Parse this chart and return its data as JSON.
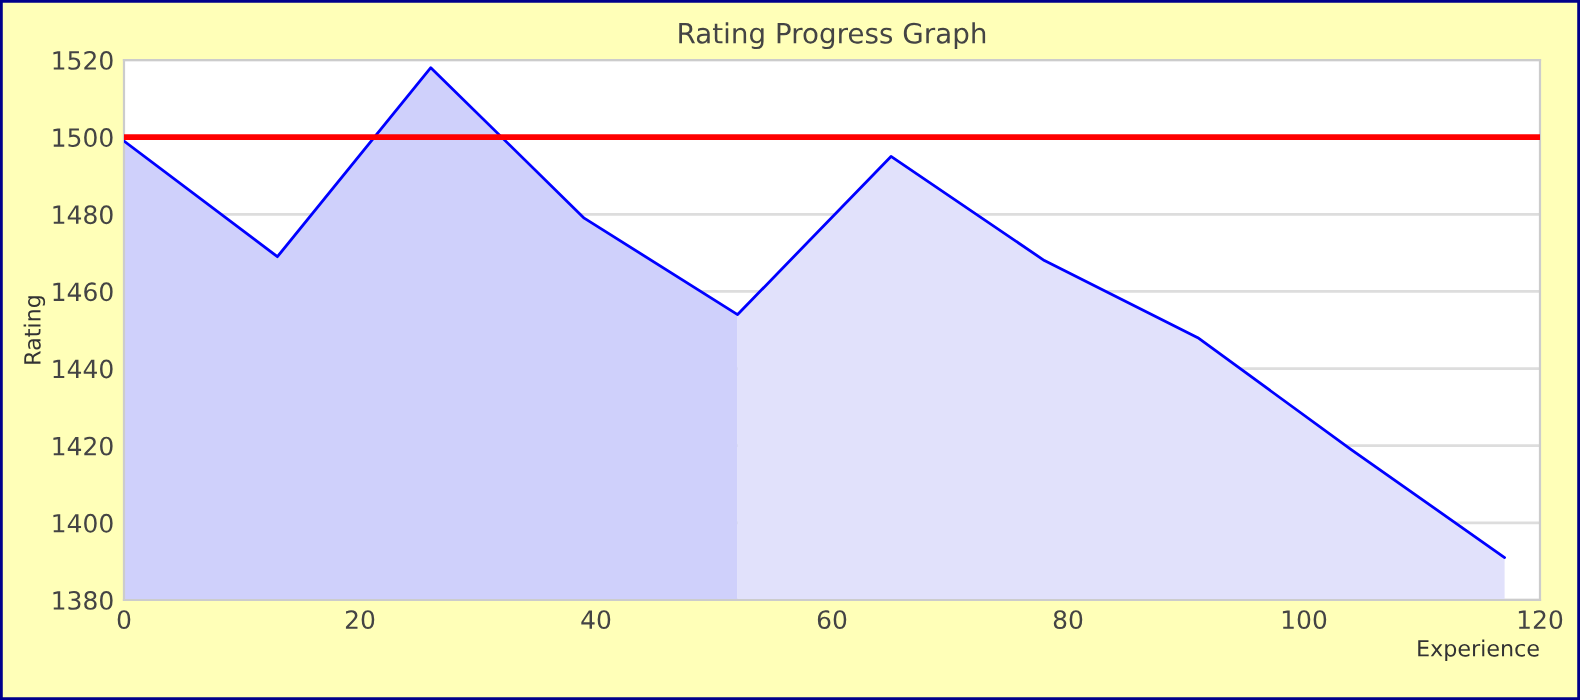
{
  "chart_data": {
    "type": "area",
    "title": "Rating Progress Graph",
    "xlabel": "Experience",
    "ylabel": "Rating",
    "xlim": [
      0,
      120
    ],
    "xticks": [
      0,
      20,
      40,
      60,
      80,
      100,
      120
    ],
    "ylim": [
      1380,
      1520
    ],
    "yticks": [
      1380,
      1400,
      1420,
      1440,
      1460,
      1480,
      1500,
      1520
    ],
    "grid": "y",
    "series": [
      {
        "type": "area",
        "color": "#cfd0fb",
        "x": [
          0,
          13,
          26,
          39,
          52
        ],
        "values": [
          1499,
          1469,
          1518,
          1479,
          1454
        ]
      },
      {
        "type": "area",
        "color": "#e1e1fb",
        "x": [
          52,
          65,
          78,
          91,
          104,
          117
        ],
        "values": [
          1454,
          1495,
          1468,
          1448,
          1419,
          1391
        ]
      },
      {
        "type": "line",
        "color": "#0000ff",
        "x": [
          0,
          13,
          26,
          39,
          52,
          65,
          78,
          91,
          104,
          117
        ],
        "values": [
          1499,
          1469,
          1518,
          1479,
          1454,
          1495,
          1468,
          1448,
          1419,
          1391
        ]
      }
    ],
    "ref_lines": [
      {
        "axis": "y",
        "value": 1500,
        "color": "#ff0000"
      }
    ]
  }
}
